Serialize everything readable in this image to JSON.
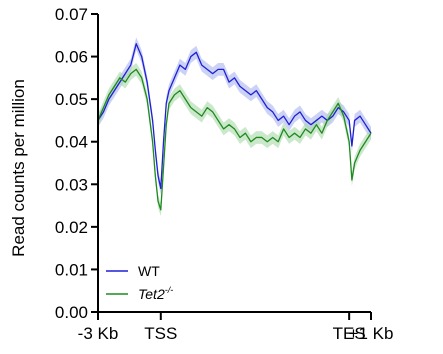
{
  "chart_data": {
    "type": "line",
    "ylabel": "Read counts per million",
    "ylim": [
      0.0,
      0.07
    ],
    "yticks": [
      "0.00",
      "0.01",
      "0.02",
      "0.03",
      "0.04",
      "0.05",
      "0.06",
      "0.07"
    ],
    "ytick_values": [
      0.0,
      0.01,
      0.02,
      0.03,
      0.04,
      0.05,
      0.06,
      0.07
    ],
    "xlim": [
      0,
      100
    ],
    "xticks": [
      {
        "value": 0,
        "label": "-3 Kb"
      },
      {
        "value": 23,
        "label": "TSS"
      },
      {
        "value": 92,
        "label": "TES"
      },
      {
        "value": 100,
        "label": "+1 Kb"
      }
    ],
    "legend": {
      "position": "bottom-left"
    },
    "series": [
      {
        "name": "WT",
        "color": "#1f1fd6",
        "band_color": "#aab4ee",
        "x": [
          0,
          2,
          4,
          6,
          8,
          10,
          12,
          14,
          16,
          18,
          20,
          21,
          22,
          23,
          24,
          25,
          26,
          28,
          30,
          32,
          34,
          36,
          38,
          40,
          42,
          44,
          46,
          48,
          50,
          52,
          54,
          56,
          58,
          60,
          62,
          64,
          66,
          68,
          70,
          72,
          74,
          76,
          78,
          80,
          82,
          84,
          86,
          88,
          90,
          92,
          93,
          94,
          96,
          98,
          100
        ],
        "values": [
          0.045,
          0.047,
          0.05,
          0.052,
          0.054,
          0.056,
          0.058,
          0.063,
          0.06,
          0.054,
          0.045,
          0.038,
          0.032,
          0.029,
          0.04,
          0.049,
          0.052,
          0.055,
          0.058,
          0.057,
          0.06,
          0.061,
          0.058,
          0.057,
          0.056,
          0.057,
          0.057,
          0.054,
          0.055,
          0.053,
          0.052,
          0.051,
          0.052,
          0.05,
          0.048,
          0.047,
          0.045,
          0.046,
          0.044,
          0.046,
          0.047,
          0.045,
          0.044,
          0.045,
          0.046,
          0.045,
          0.046,
          0.048,
          0.047,
          0.045,
          0.039,
          0.045,
          0.046,
          0.044,
          0.042
        ]
      },
      {
        "name": "Tet2-/-",
        "name_base": "Tet2",
        "name_sup": "-/-",
        "color": "#1f8a1f",
        "band_color": "#a8d8a8",
        "x": [
          0,
          2,
          4,
          6,
          8,
          10,
          12,
          14,
          16,
          18,
          20,
          21,
          22,
          23,
          24,
          25,
          26,
          28,
          30,
          32,
          34,
          36,
          38,
          40,
          42,
          44,
          46,
          48,
          50,
          52,
          54,
          56,
          58,
          60,
          62,
          64,
          66,
          68,
          70,
          72,
          74,
          76,
          78,
          80,
          82,
          84,
          86,
          88,
          90,
          92,
          93,
          94,
          96,
          98,
          100
        ],
        "values": [
          0.045,
          0.048,
          0.051,
          0.053,
          0.055,
          0.054,
          0.056,
          0.057,
          0.055,
          0.05,
          0.04,
          0.032,
          0.026,
          0.024,
          0.034,
          0.044,
          0.049,
          0.051,
          0.052,
          0.05,
          0.048,
          0.047,
          0.046,
          0.048,
          0.047,
          0.045,
          0.043,
          0.044,
          0.043,
          0.041,
          0.042,
          0.04,
          0.041,
          0.041,
          0.04,
          0.041,
          0.04,
          0.043,
          0.041,
          0.042,
          0.041,
          0.043,
          0.042,
          0.044,
          0.042,
          0.045,
          0.047,
          0.049,
          0.046,
          0.04,
          0.031,
          0.035,
          0.038,
          0.04,
          0.042
        ]
      }
    ]
  }
}
